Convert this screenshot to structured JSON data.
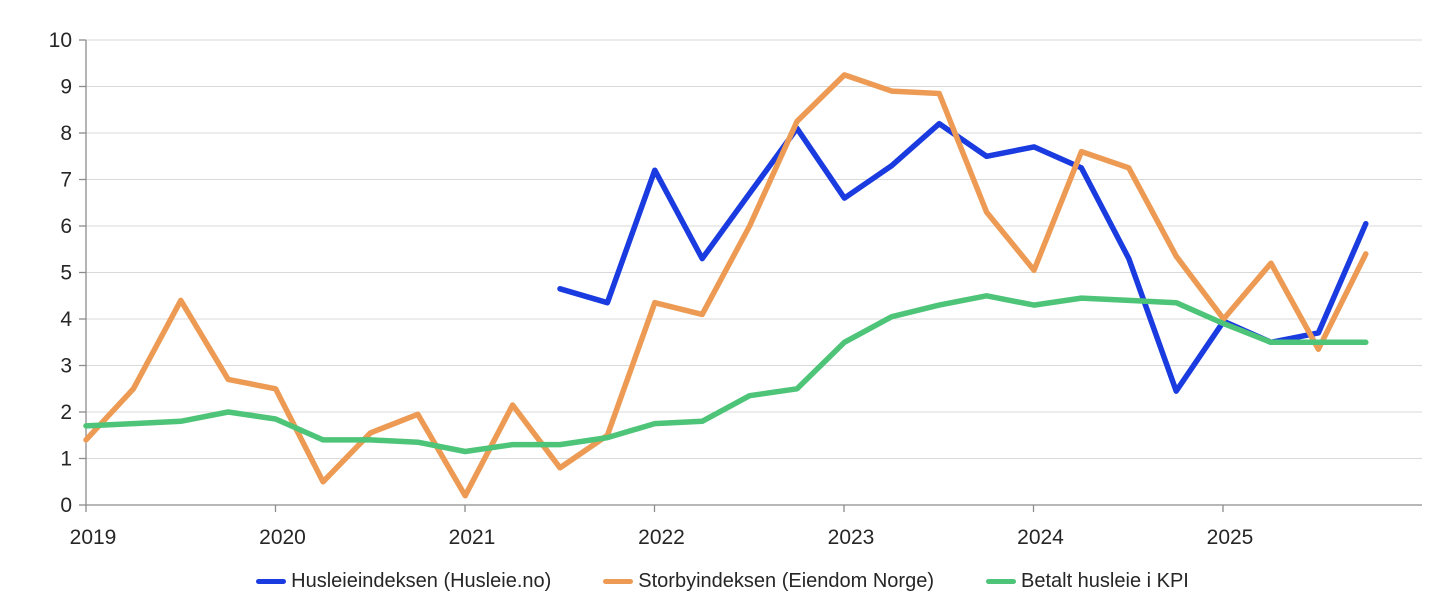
{
  "chart_data": {
    "type": "line",
    "title": "",
    "xlabel": "",
    "ylabel": "",
    "grid": true,
    "legend_position": "bottom",
    "background_color": "#ffffff",
    "gridline_color": "#d9d9d9",
    "axis_color": "#8c8c8c",
    "text_color": "#262626",
    "y_axis": {
      "min": 0,
      "max": 10,
      "tick_step": 1,
      "tick_labels": [
        "0",
        "1",
        "2",
        "3",
        "4",
        "5",
        "6",
        "7",
        "8",
        "9",
        "10"
      ]
    },
    "x_axis": {
      "unit": "quarter",
      "points_per_year": 4,
      "total_points": 28,
      "first_point": "2019 Q1",
      "last_point": "2025 Q4",
      "tick_labels": [
        "2019",
        "2020",
        "2021",
        "2022",
        "2023",
        "2024",
        "2025"
      ]
    },
    "series": [
      {
        "name": "Husleieindeksen (Husleie.no)",
        "color": "#1a3be0",
        "start_index": 10,
        "values": [
          4.65,
          4.35,
          7.2,
          5.3,
          6.7,
          8.1,
          6.6,
          7.3,
          8.2,
          7.5,
          7.7,
          7.25,
          5.3,
          2.45,
          3.95,
          3.5,
          3.7,
          6.05
        ]
      },
      {
        "name": "Storbyindeksen (Eiendom Norge)",
        "color": "#ed9b54",
        "start_index": 0,
        "values": [
          1.4,
          2.5,
          4.4,
          2.7,
          2.5,
          0.5,
          1.55,
          1.95,
          0.2,
          2.15,
          0.8,
          1.5,
          4.35,
          4.1,
          6.0,
          8.25,
          9.25,
          8.9,
          8.85,
          6.3,
          5.05,
          7.6,
          7.25,
          5.35,
          4.0,
          5.2,
          3.35,
          5.4
        ]
      },
      {
        "name": "Betalt husleie i KPI",
        "color": "#4ec478",
        "start_index": 0,
        "values": [
          1.7,
          1.75,
          1.8,
          2.0,
          1.85,
          1.4,
          1.4,
          1.35,
          1.15,
          1.3,
          1.3,
          1.45,
          1.75,
          1.8,
          2.35,
          2.5,
          3.5,
          4.05,
          4.3,
          4.5,
          4.3,
          4.45,
          4.4,
          4.35,
          3.9,
          3.5,
          3.5,
          3.5
        ]
      }
    ]
  }
}
